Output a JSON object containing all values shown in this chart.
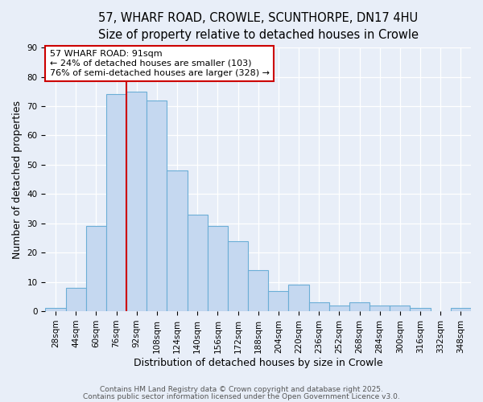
{
  "title_line1": "57, WHARF ROAD, CROWLE, SCUNTHORPE, DN17 4HU",
  "title_line2": "Size of property relative to detached houses in Crowle",
  "xlabel": "Distribution of detached houses by size in Crowle",
  "ylabel": "Number of detached properties",
  "categories": [
    "28sqm",
    "44sqm",
    "60sqm",
    "76sqm",
    "92sqm",
    "108sqm",
    "124sqm",
    "140sqm",
    "156sqm",
    "172sqm",
    "188sqm",
    "204sqm",
    "220sqm",
    "236sqm",
    "252sqm",
    "268sqm",
    "284sqm",
    "300sqm",
    "316sqm",
    "332sqm",
    "348sqm"
  ],
  "values": [
    1,
    8,
    29,
    74,
    75,
    72,
    48,
    33,
    29,
    24,
    14,
    7,
    9,
    3,
    2,
    3,
    2,
    2,
    1,
    0,
    1
  ],
  "bar_color": "#c5d8f0",
  "bar_edge_color": "#6baed6",
  "vline_color": "#cc0000",
  "annotation_text": "57 WHARF ROAD: 91sqm\n← 24% of detached houses are smaller (103)\n76% of semi-detached houses are larger (328) →",
  "annotation_box_color": "#ffffff",
  "annotation_box_edge": "#cc0000",
  "ylim": [
    0,
    90
  ],
  "yticks": [
    0,
    10,
    20,
    30,
    40,
    50,
    60,
    70,
    80,
    90
  ],
  "background_color": "#e8eef8",
  "footer_line1": "Contains HM Land Registry data © Crown copyright and database right 2025.",
  "footer_line2": "Contains public sector information licensed under the Open Government Licence v3.0.",
  "title_fontsize": 10.5,
  "subtitle_fontsize": 9.5,
  "label_fontsize": 9,
  "tick_fontsize": 7.5,
  "annotation_fontsize": 8,
  "footer_fontsize": 6.5
}
